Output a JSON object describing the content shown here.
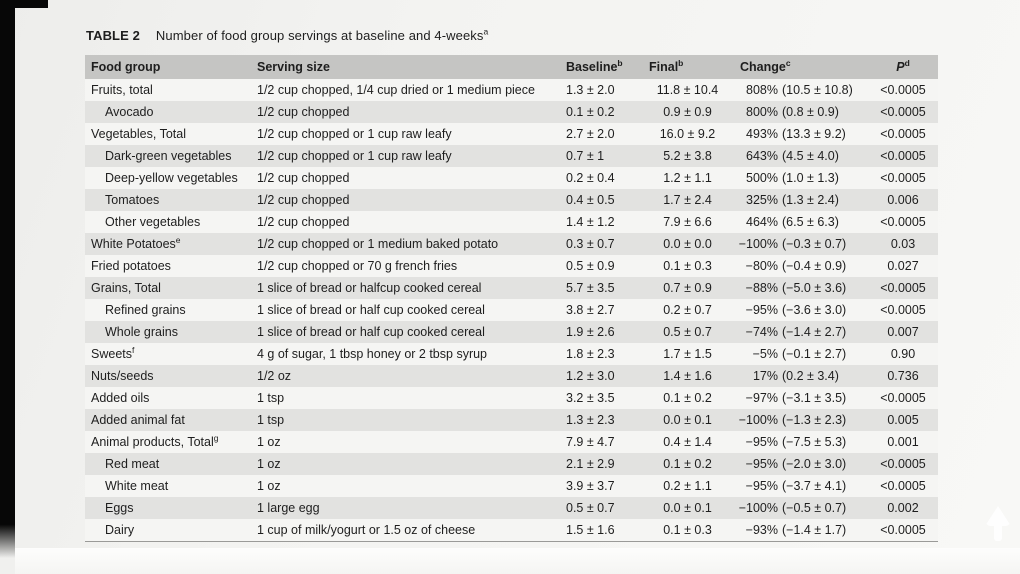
{
  "colors": {
    "page_bg": "#f3f3f1",
    "header_row_bg": "#c5c5c3",
    "row_light_bg": "#f5f5f3",
    "row_gray_bg": "#e2e2e0",
    "edge_bar": "#070707",
    "text": "#1e1e1e",
    "scroll_arrow": "#ffffff"
  },
  "icons": {
    "scroll_arrow": "up-arrow"
  },
  "table": {
    "label": "TABLE 2",
    "title": "Number of food group servings at baseline and 4-weeks",
    "title_sup": "a",
    "columns": {
      "food_group": "Food group",
      "serving_size": "Serving size",
      "baseline": "Baseline",
      "baseline_sup": "b",
      "final": "Final",
      "final_sup": "b",
      "change": "Change",
      "change_sup": "c",
      "p": "P",
      "p_sup": "d"
    },
    "rows": [
      {
        "name": "Fruits, total",
        "sup": "",
        "indent": false,
        "serving": "1/2 cup chopped, 1/4 cup dried or 1 medium piece",
        "baseline": "1.3 ± 2.0",
        "final": "11.8 ± 10.4",
        "change_pct": "808%",
        "change_ci": "(10.5 ± 10.8)",
        "p": "<0.0005"
      },
      {
        "name": "Avocado",
        "sup": "",
        "indent": true,
        "serving": "1/2 cup chopped",
        "baseline": "0.1 ± 0.2",
        "final": "0.9 ± 0.9",
        "change_pct": "800%",
        "change_ci": "(0.8 ± 0.9)",
        "p": "<0.0005"
      },
      {
        "name": "Vegetables, Total",
        "sup": "",
        "indent": false,
        "serving": "1/2 cup chopped or 1 cup raw leafy",
        "baseline": "2.7 ± 2.0",
        "final": "16.0 ± 9.2",
        "change_pct": "493%",
        "change_ci": "(13.3 ± 9.2)",
        "p": "<0.0005"
      },
      {
        "name": "Dark-green vegetables",
        "sup": "",
        "indent": true,
        "serving": "1/2 cup chopped or 1 cup raw leafy",
        "baseline": "0.7 ± 1",
        "final": "5.2 ± 3.8",
        "change_pct": "643%",
        "change_ci": "(4.5 ± 4.0)",
        "p": "<0.0005"
      },
      {
        "name": "Deep-yellow vegetables",
        "sup": "",
        "indent": true,
        "serving": "1/2 cup chopped",
        "baseline": "0.2 ± 0.4",
        "final": "1.2 ± 1.1",
        "change_pct": "500%",
        "change_ci": "(1.0 ± 1.3)",
        "p": "<0.0005"
      },
      {
        "name": "Tomatoes",
        "sup": "",
        "indent": true,
        "serving": "1/2 cup chopped",
        "baseline": "0.4 ± 0.5",
        "final": "1.7 ± 2.4",
        "change_pct": "325%",
        "change_ci": "(1.3 ± 2.4)",
        "p": "0.006"
      },
      {
        "name": "Other vegetables",
        "sup": "",
        "indent": true,
        "serving": "1/2 cup chopped",
        "baseline": "1.4 ± 1.2",
        "final": "7.9 ± 6.6",
        "change_pct": "464%",
        "change_ci": "(6.5 ± 6.3)",
        "p": "<0.0005"
      },
      {
        "name": "White Potatoes",
        "sup": "e",
        "indent": false,
        "serving": "1/2 cup chopped or 1 medium baked potato",
        "baseline": "0.3 ± 0.7",
        "final": "0.0 ± 0.0",
        "change_pct": "−100%",
        "change_ci": "(−0.3 ± 0.7)",
        "p": "0.03"
      },
      {
        "name": "Fried potatoes",
        "sup": "",
        "indent": false,
        "serving": "1/2 cup chopped or 70 g french fries",
        "baseline": "0.5 ± 0.9",
        "final": "0.1 ± 0.3",
        "change_pct": "−80%",
        "change_ci": "(−0.4 ± 0.9)",
        "p": "0.027"
      },
      {
        "name": "Grains, Total",
        "sup": "",
        "indent": false,
        "serving": "1 slice of bread or halfcup cooked cereal",
        "baseline": "5.7 ± 3.5",
        "final": "0.7 ± 0.9",
        "change_pct": "−88%",
        "change_ci": "(−5.0 ± 3.6)",
        "p": "<0.0005"
      },
      {
        "name": "Refined grains",
        "sup": "",
        "indent": true,
        "serving": "1 slice of bread or half cup cooked cereal",
        "baseline": "3.8 ± 2.7",
        "final": "0.2 ± 0.7",
        "change_pct": "−95%",
        "change_ci": "(−3.6 ± 3.0)",
        "p": "<0.0005"
      },
      {
        "name": "Whole grains",
        "sup": "",
        "indent": true,
        "serving": "1 slice of bread or half cup cooked cereal",
        "baseline": "1.9 ± 2.6",
        "final": "0.5 ± 0.7",
        "change_pct": "−74%",
        "change_ci": "(−1.4 ± 2.7)",
        "p": "0.007"
      },
      {
        "name": "Sweets",
        "sup": "f",
        "indent": false,
        "serving": "4 g of sugar, 1 tbsp honey or 2 tbsp syrup",
        "baseline": "1.8 ± 2.3",
        "final": "1.7 ± 1.5",
        "change_pct": "−5%",
        "change_ci": "(−0.1 ± 2.7)",
        "p": "0.90"
      },
      {
        "name": "Nuts/seeds",
        "sup": "",
        "indent": false,
        "serving": "1/2 oz",
        "baseline": "1.2 ± 3.0",
        "final": "1.4 ± 1.6",
        "change_pct": "17%",
        "change_ci": "(0.2 ± 3.4)",
        "p": "0.736"
      },
      {
        "name": "Added oils",
        "sup": "",
        "indent": false,
        "serving": "1 tsp",
        "baseline": "3.2 ± 3.5",
        "final": "0.1 ± 0.2",
        "change_pct": "−97%",
        "change_ci": "(−3.1 ± 3.5)",
        "p": "<0.0005"
      },
      {
        "name": "Added animal fat",
        "sup": "",
        "indent": false,
        "serving": "1 tsp",
        "baseline": "1.3 ± 2.3",
        "final": "0.0 ± 0.1",
        "change_pct": "−100%",
        "change_ci": "(−1.3 ± 2.3)",
        "p": "0.005"
      },
      {
        "name": "Animal products, Total",
        "sup": "g",
        "indent": false,
        "serving": "1 oz",
        "baseline": "7.9 ± 4.7",
        "final": "0.4 ± 1.4",
        "change_pct": "−95%",
        "change_ci": "(−7.5 ± 5.3)",
        "p": "0.001"
      },
      {
        "name": "Red meat",
        "sup": "",
        "indent": true,
        "serving": "1 oz",
        "baseline": "2.1 ± 2.9",
        "final": "0.1 ± 0.2",
        "change_pct": "−95%",
        "change_ci": "(−2.0 ± 3.0)",
        "p": "<0.0005"
      },
      {
        "name": "White meat",
        "sup": "",
        "indent": true,
        "serving": "1 oz",
        "baseline": "3.9 ± 3.7",
        "final": "0.2 ± 1.1",
        "change_pct": "−95%",
        "change_ci": "(−3.7 ± 4.1)",
        "p": "<0.0005"
      },
      {
        "name": "Eggs",
        "sup": "",
        "indent": true,
        "serving": "1 large egg",
        "baseline": "0.5 ± 0.7",
        "final": "0.0 ± 0.1",
        "change_pct": "−100%",
        "change_ci": "(−0.5 ± 0.7)",
        "p": "0.002"
      },
      {
        "name": "Dairy",
        "sup": "",
        "indent": true,
        "serving": "1 cup of milk/yogurt or 1.5 oz of cheese",
        "baseline": "1.5 ± 1.6",
        "final": "0.1 ± 0.3",
        "change_pct": "−93%",
        "change_ci": "(−1.4 ± 1.7)",
        "p": "<0.0005"
      }
    ]
  }
}
